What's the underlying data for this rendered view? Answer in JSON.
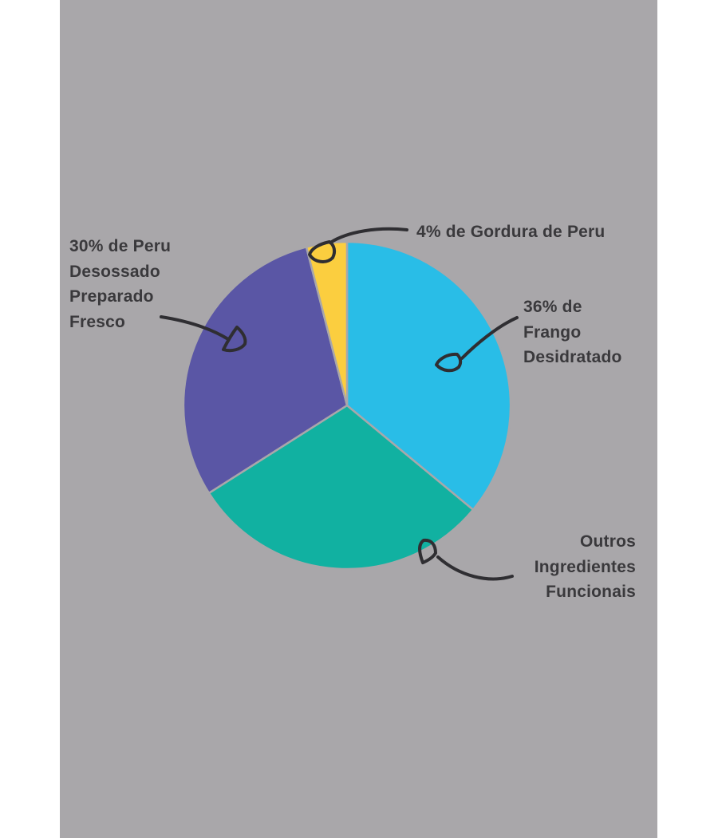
{
  "page": {
    "background": "#ffffff"
  },
  "panel": {
    "background": "#a9a7aa"
  },
  "colors": {
    "text": "#3a393c",
    "ink": "#2f2e32"
  },
  "chart_data": {
    "type": "pie",
    "title": "",
    "legend": "none",
    "start_angle_deg": 0,
    "direction": "clockwise",
    "units": "percent",
    "slices": [
      {
        "id": "frango",
        "label": "36% de Frango Desidratado",
        "value": 36,
        "color": "#29bde7"
      },
      {
        "id": "outros",
        "label": "Outros Ingredientes Funcionais",
        "value": 30,
        "color": "#11b1a1"
      },
      {
        "id": "peru",
        "label": "30% de Peru Desossado Preparado Fresco",
        "value": 30,
        "color": "#5a56a5"
      },
      {
        "id": "gordura",
        "label": "4% de Gordura de Peru",
        "value": 4,
        "color": "#fbce3f"
      }
    ]
  },
  "annotations": {
    "peru": {
      "text": "30% de Peru\nDesossado\nPreparado\nFresco"
    },
    "gordura": {
      "text": "4% de Gordura de Peru"
    },
    "frango": {
      "text": "36% de\nFrango\nDesidratado"
    },
    "outros": {
      "text": "Outros\nIngredientes\nFuncionais"
    }
  }
}
